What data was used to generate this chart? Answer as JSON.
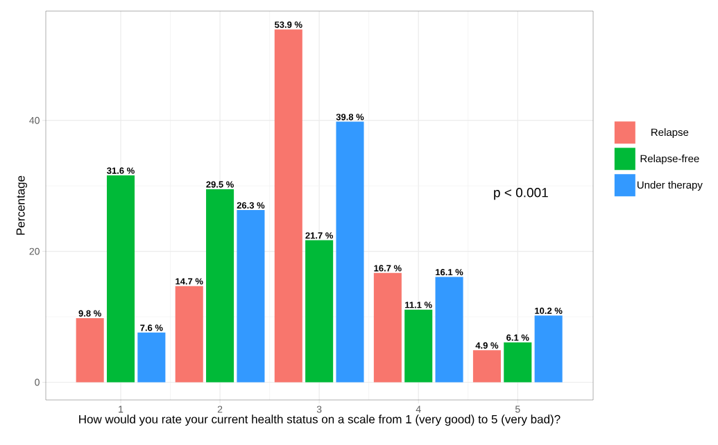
{
  "chart_data": {
    "type": "bar",
    "xlabel": "How would you rate your current health status on a scale from 1 (very good) to 5 (very bad)?",
    "ylabel": "Percentage",
    "categories": [
      "1",
      "2",
      "3",
      "4",
      "5"
    ],
    "series": [
      {
        "name": "Relapse",
        "color": "#f8766d",
        "values": [
          9.8,
          14.7,
          53.9,
          16.7,
          4.9
        ],
        "value_labels": [
          "9.8 %",
          "14.7 %",
          "53.9 %",
          "16.7 %",
          "4.9 %"
        ]
      },
      {
        "name": "Relapse-free",
        "color": "#00ba38",
        "values": [
          31.6,
          29.5,
          21.7,
          11.1,
          6.1
        ],
        "value_labels": [
          "31.6 %",
          "29.5 %",
          "21.7 %",
          "11.1 %",
          "6.1 %"
        ]
      },
      {
        "name": "Under therapy",
        "color": "#3399ff",
        "values": [
          7.6,
          26.3,
          39.8,
          16.1,
          10.2
        ],
        "value_labels": [
          "7.6 %",
          "26.3 %",
          "39.8 %",
          "16.1 %",
          "10.2 %"
        ]
      }
    ],
    "ylim": [
      -2.7,
      56.7
    ],
    "yticks": [
      0,
      20,
      40
    ],
    "grid": true,
    "legend": "right",
    "annotations": [
      "p < 0.001"
    ]
  }
}
